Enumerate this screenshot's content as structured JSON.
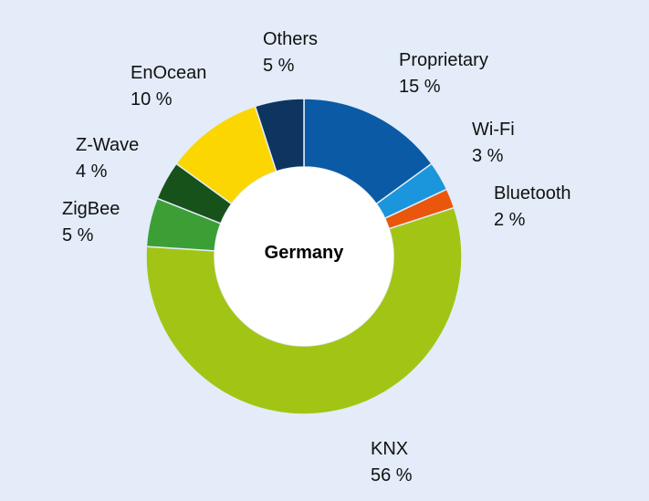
{
  "chart_data": {
    "type": "pie",
    "style": "donut",
    "center_label": "Germany",
    "slices": [
      {
        "name": "Proprietary",
        "value": 15,
        "value_label": "15 %",
        "color": "#0a5aa6"
      },
      {
        "name": "Wi-Fi",
        "value": 3,
        "value_label": "3 %",
        "color": "#1b95dc"
      },
      {
        "name": "Bluetooth",
        "value": 2,
        "value_label": "2 %",
        "color": "#e9560c"
      },
      {
        "name": "KNX",
        "value": 56,
        "value_label": "56 %",
        "color": "#a2c515"
      },
      {
        "name": "ZigBee",
        "value": 5,
        "value_label": "5 %",
        "color": "#3b9f36"
      },
      {
        "name": "Z-Wave",
        "value": 4,
        "value_label": "4 %",
        "color": "#17521b"
      },
      {
        "name": "EnOcean",
        "value": 10,
        "value_label": "10 %",
        "color": "#fcd600"
      },
      {
        "name": "Others",
        "value": 5,
        "value_label": "5 %",
        "color": "#0e3560"
      }
    ]
  },
  "colors": {
    "background": "#e3ecf8",
    "separator": "#e3ecf8",
    "hole": "#ffffff"
  }
}
